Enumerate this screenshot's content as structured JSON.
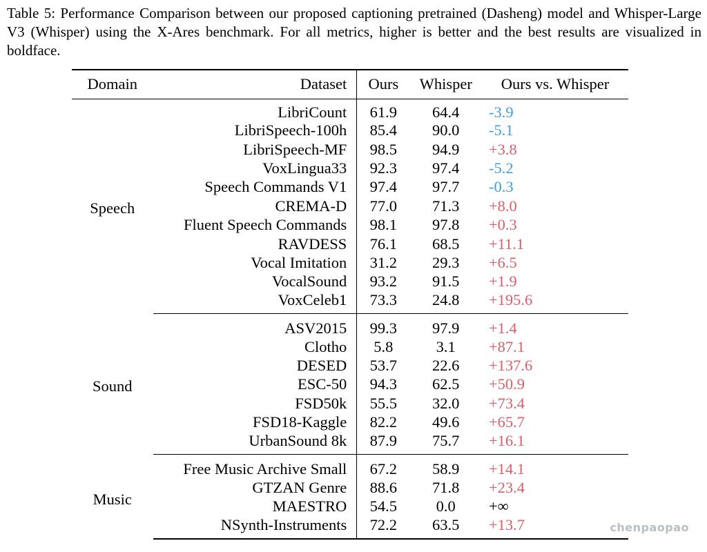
{
  "caption": "Table 5: Performance Comparison between our proposed captioning pretrained (Dasheng) model and Whisper-Large V3 (Whisper) using the X-Ares benchmark. For all metrics, higher is better and the best results are visualized in boldface.",
  "headers": {
    "domain": "Domain",
    "dataset": "Dataset",
    "ours": "Ours",
    "whisper": "Whisper",
    "diff": "Ours vs. Whisper"
  },
  "groups": [
    {
      "domain": "Speech",
      "rows": [
        {
          "dataset": "LibriCount",
          "ours": "61.9",
          "whisper": "64.4",
          "diff": "-3.9",
          "best": "whisper"
        },
        {
          "dataset": "LibriSpeech-100h",
          "ours": "85.4",
          "whisper": "90.0",
          "diff": "-5.1",
          "best": "whisper"
        },
        {
          "dataset": "LibriSpeech-MF",
          "ours": "98.5",
          "whisper": "94.9",
          "diff": "+3.8",
          "best": "ours"
        },
        {
          "dataset": "VoxLingua33",
          "ours": "92.3",
          "whisper": "97.4",
          "diff": "-5.2",
          "best": "whisper"
        },
        {
          "dataset": "Speech Commands V1",
          "ours": "97.4",
          "whisper": "97.7",
          "diff": "-0.3",
          "best": "whisper"
        },
        {
          "dataset": "CREMA-D",
          "ours": "77.0",
          "whisper": "71.3",
          "diff": "+8.0",
          "best": "ours"
        },
        {
          "dataset": "Fluent Speech Commands",
          "ours": "98.1",
          "whisper": "97.8",
          "diff": "+0.3",
          "best": "ours"
        },
        {
          "dataset": "RAVDESS",
          "ours": "76.1",
          "whisper": "68.5",
          "diff": "+11.1",
          "best": "ours"
        },
        {
          "dataset": "Vocal Imitation",
          "ours": "31.2",
          "whisper": "29.3",
          "diff": "+6.5",
          "best": "ours"
        },
        {
          "dataset": "VocalSound",
          "ours": "93.2",
          "whisper": "91.5",
          "diff": "+1.9",
          "best": "ours"
        },
        {
          "dataset": "VoxCeleb1",
          "ours": "73.3",
          "whisper": "24.8",
          "diff": "+195.6",
          "best": "ours"
        }
      ]
    },
    {
      "domain": "Sound",
      "rows": [
        {
          "dataset": "ASV2015",
          "ours": "99.3",
          "whisper": "97.9",
          "diff": "+1.4",
          "best": "ours"
        },
        {
          "dataset": "Clotho",
          "ours": "5.8",
          "whisper": "3.1",
          "diff": "+87.1",
          "best": "ours"
        },
        {
          "dataset": "DESED",
          "ours": "53.7",
          "whisper": "22.6",
          "diff": "+137.6",
          "best": "ours"
        },
        {
          "dataset": "ESC-50",
          "ours": "94.3",
          "whisper": "62.5",
          "diff": "+50.9",
          "best": "ours"
        },
        {
          "dataset": "FSD50k",
          "ours": "55.5",
          "whisper": "32.0",
          "diff": "+73.4",
          "best": "ours"
        },
        {
          "dataset": "FSD18-Kaggle",
          "ours": "82.2",
          "whisper": "49.6",
          "diff": "+65.7",
          "best": "ours"
        },
        {
          "dataset": "UrbanSound 8k",
          "ours": "87.9",
          "whisper": "75.7",
          "diff": "+16.1",
          "best": "ours"
        }
      ]
    },
    {
      "domain": "Music",
      "rows": [
        {
          "dataset": "Free Music Archive Small",
          "ours": "67.2",
          "whisper": "58.9",
          "diff": "+14.1",
          "best": "ours"
        },
        {
          "dataset": "GTZAN Genre",
          "ours": "88.6",
          "whisper": "71.8",
          "diff": "+23.4",
          "best": "ours"
        },
        {
          "dataset": "MAESTRO",
          "ours": "54.5",
          "whisper": "0.0",
          "diff": "+∞",
          "best": "ours"
        },
        {
          "dataset": "NSynth-Instruments",
          "ours": "72.2",
          "whisper": "63.5",
          "diff": "+13.7",
          "best": "ours"
        }
      ]
    }
  ],
  "colors": {
    "negative": "#3d9fe0",
    "positive": "#dc5c6a",
    "infinite": "#000000"
  },
  "watermark": "chenpaopao"
}
